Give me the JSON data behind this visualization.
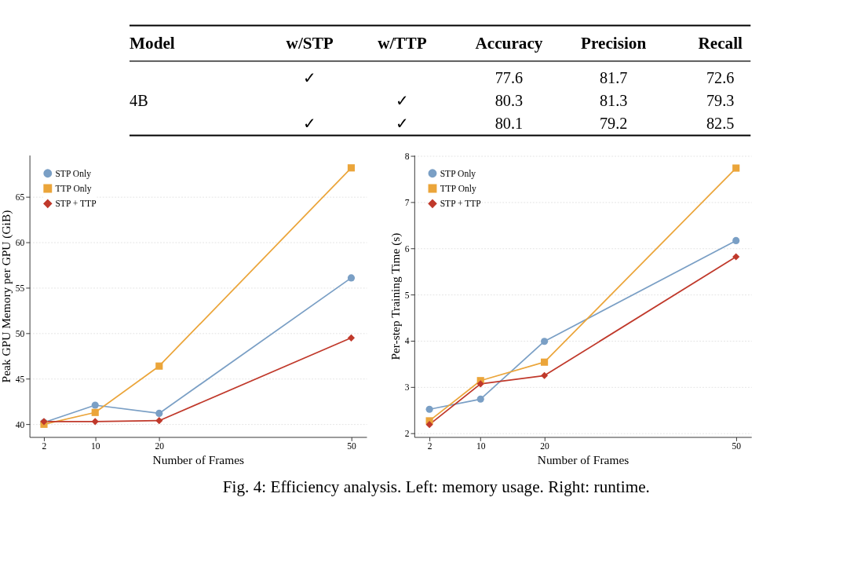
{
  "chart_data": [
    {
      "type": "other",
      "categories": [
        "Model",
        "w/STP",
        "w/TTP",
        "Accuracy",
        "Precision",
        "Recall"
      ],
      "cell_labels": [
        [
          null,
          "✓",
          null,
          "77.6",
          "81.7",
          "72.6"
        ],
        [
          "4B",
          null,
          "✓",
          "80.3",
          "81.3",
          "79.3"
        ],
        [
          null,
          "✓",
          "✓",
          "80.1",
          "79.2",
          "82.5"
        ]
      ]
    },
    {
      "type": "line",
      "xlabel": "Number of Frames",
      "ylabel": "Peak GPU Memory per GPU (GiB)",
      "x": [
        2,
        10,
        20,
        50
      ],
      "xlim": [
        -0.25,
        52.4
      ],
      "xticks": [
        2,
        10,
        20,
        50
      ],
      "ylim": [
        38.6,
        69.6
      ],
      "yticks": [
        40,
        45,
        50,
        55,
        60,
        65
      ],
      "grid": "y",
      "legend": "top left",
      "line_style": "solid",
      "series": [
        {
          "name": "STP Only",
          "color": "#7a9fc5",
          "marker": "circle",
          "values": [
            40.2,
            42.1,
            41.2,
            56.1
          ]
        },
        {
          "name": "TTP Only",
          "color": "#eba53a",
          "marker": "square",
          "values": [
            40.0,
            41.3,
            46.4,
            68.2
          ]
        },
        {
          "name": "STP + TTP",
          "color": "#c0392b",
          "marker": "diamond",
          "values": [
            40.3,
            40.3,
            40.4,
            49.5
          ]
        }
      ]
    },
    {
      "type": "line",
      "xlabel": "Number of Frames",
      "ylabel": "Per-step Training Time (s)",
      "x": [
        2,
        10,
        20,
        50
      ],
      "xlim": [
        -0.37,
        52.4
      ],
      "xticks": [
        2,
        10,
        20,
        50
      ],
      "ylim": [
        1.92,
        8.02
      ],
      "yticks": [
        2,
        3,
        4,
        5,
        6,
        7,
        8
      ],
      "grid": "y",
      "legend": "top left",
      "line_style": "solid",
      "annotations": [
        "Fig. 4: Efficiency analysis. Left: memory usage. Right: runtime."
      ],
      "series": [
        {
          "name": "STP Only",
          "color": "#7a9fc5",
          "marker": "circle",
          "values": [
            2.52,
            2.74,
            3.99,
            6.17
          ]
        },
        {
          "name": "TTP Only",
          "color": "#eba53a",
          "marker": "square",
          "values": [
            2.27,
            3.14,
            3.54,
            7.74
          ]
        },
        {
          "name": "STP + TTP",
          "color": "#c0392b",
          "marker": "diamond",
          "values": [
            2.19,
            3.07,
            3.25,
            5.82
          ]
        }
      ]
    }
  ]
}
